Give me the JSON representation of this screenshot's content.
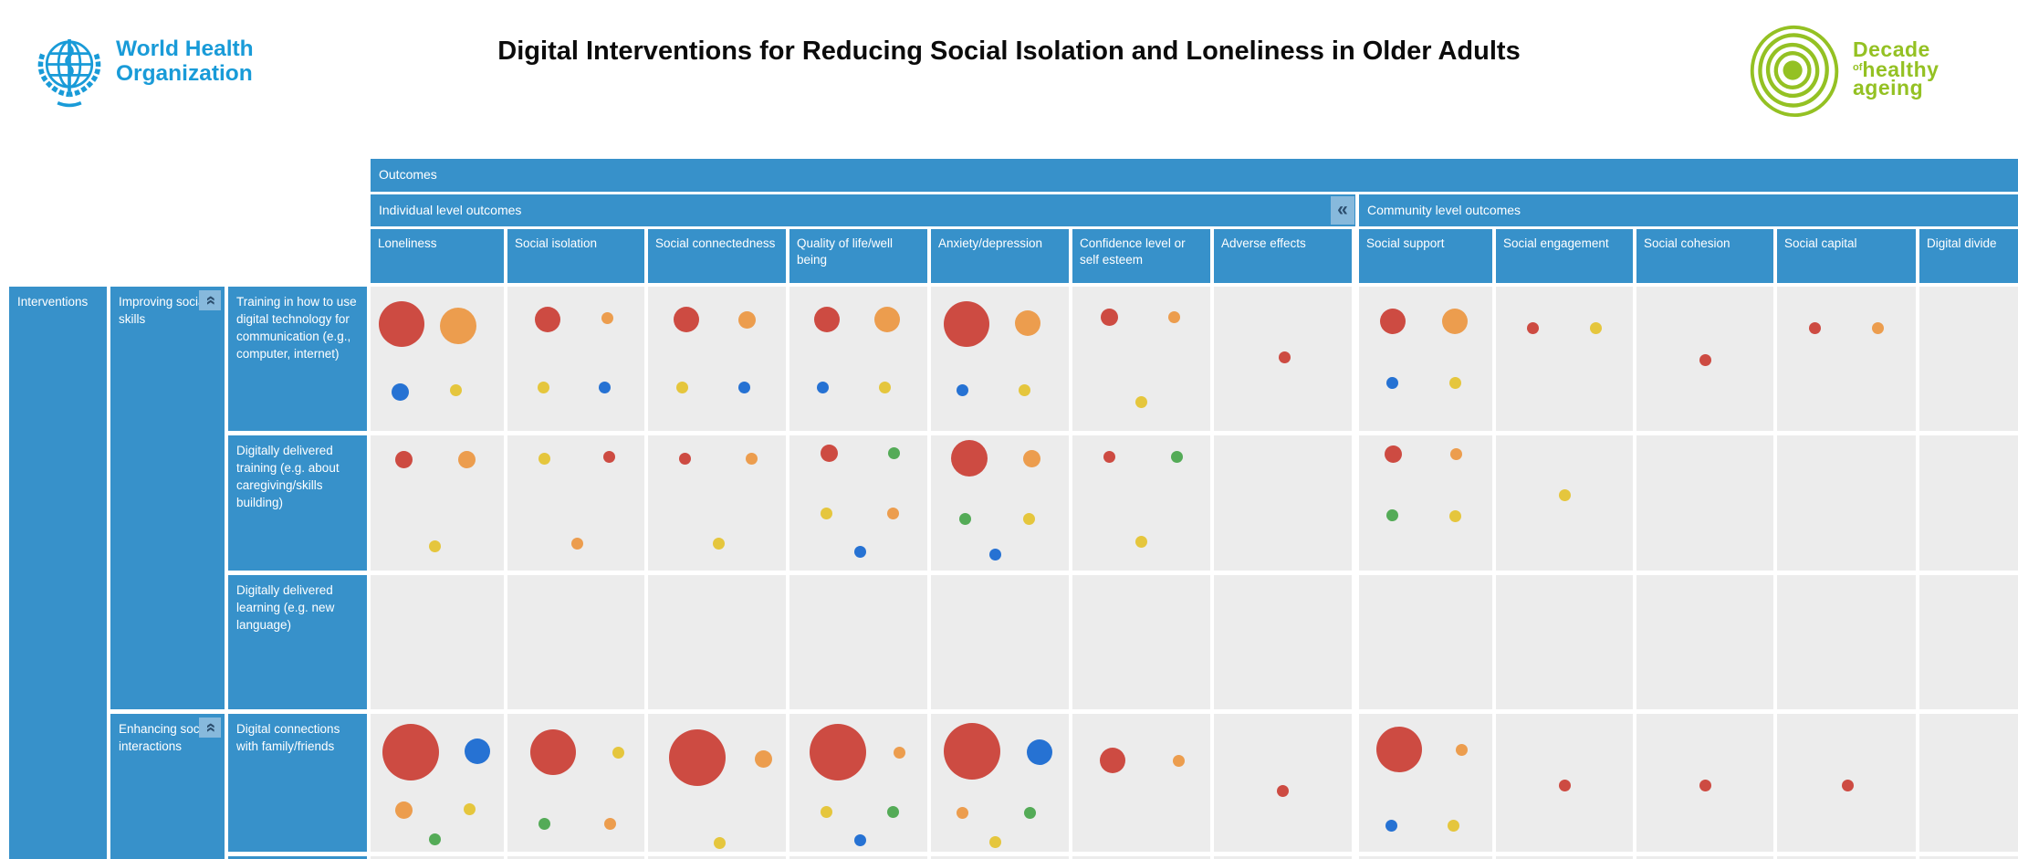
{
  "header": {
    "who": {
      "line1": "World Health",
      "line2": "Organization"
    },
    "title": "Digital Interventions for Reducing Social Isolation and Loneliness in Older Adults",
    "decade": {
      "word1": "Decade",
      "of": "of",
      "word2": "healthy",
      "word3": "ageing"
    }
  },
  "colors": {
    "header_blue": "#3791ca",
    "cell_gray": "#ececec",
    "collapse_bg": "#87b9dc",
    "collapse_fg": "#2b4d6d",
    "who_blue": "#199bd8",
    "decade_green": "#94c123",
    "red": "#cd4b42",
    "orange": "#ec9d4e",
    "yellow": "#e5c63d",
    "blue": "#2672d3",
    "green": "#54ab57"
  },
  "matrix": {
    "outcomes_label": "Outcomes",
    "bands": [
      {
        "label": "Individual level outcomes"
      },
      {
        "label": "Community level outcomes"
      }
    ],
    "collapse_icon": "«",
    "columns": [
      "Loneliness",
      "Social isolation",
      "Social connectedness",
      "Quality of life/well being",
      "Anxiety/depression",
      "Confidence level or self esteem",
      "Adverse effects",
      "Social support",
      "Social engagement",
      "Social cohesion",
      "Social capital",
      "Digital divide"
    ],
    "row_axis_label": "Interventions",
    "groups": [
      {
        "label": "Improving social skills"
      },
      {
        "label": "Enhancing social interactions"
      }
    ],
    "rows": [
      {
        "group": 0,
        "label": "Training in how to use digital technology for communication (e.g., computer, internet)",
        "cells": [
          [
            [
              "r",
              "xl",
              23,
              26
            ],
            [
              "o",
              "l",
              66,
              27
            ],
            [
              "b",
              "ms",
              22,
              73
            ],
            [
              "y",
              "s",
              64,
              72
            ]
          ],
          [
            [
              "r",
              "m",
              29,
              23
            ],
            [
              "o",
              "s",
              73,
              22
            ],
            [
              "y",
              "s",
              26,
              70
            ],
            [
              "b",
              "s",
              71,
              70
            ]
          ],
          [
            [
              "r",
              "m",
              28,
              23
            ],
            [
              "o",
              "ms",
              72,
              23
            ],
            [
              "y",
              "s",
              25,
              70
            ],
            [
              "b",
              "s",
              70,
              70
            ]
          ],
          [
            [
              "r",
              "m",
              27,
              23
            ],
            [
              "o",
              "m",
              71,
              23
            ],
            [
              "b",
              "s",
              24,
              70
            ],
            [
              "y",
              "s",
              69,
              70
            ]
          ],
          [
            [
              "r",
              "xl",
              26,
              26
            ],
            [
              "o",
              "m",
              70,
              25
            ],
            [
              "b",
              "s",
              23,
              72
            ],
            [
              "y",
              "s",
              68,
              72
            ]
          ],
          [
            [
              "r",
              "ms",
              27,
              21
            ],
            [
              "o",
              "s",
              74,
              21
            ],
            [
              "y",
              "s",
              50,
              80
            ]
          ],
          [
            [
              "r",
              "s",
              51,
              49
            ]
          ],
          [
            [
              "r",
              "m",
              25,
              24
            ],
            [
              "o",
              "m",
              72,
              24
            ],
            [
              "b",
              "s",
              25,
              67
            ],
            [
              "y",
              "s",
              72,
              67
            ]
          ],
          [
            [
              "r",
              "s",
              27,
              29
            ],
            [
              "y",
              "s",
              73,
              29
            ]
          ],
          [
            [
              "r",
              "s",
              50,
              51
            ]
          ],
          [
            [
              "r",
              "s",
              27,
              29
            ],
            [
              "o",
              "s",
              73,
              29
            ]
          ],
          []
        ]
      },
      {
        "group": 0,
        "label": "Digitally delivered training (e.g. about caregiving/skills building)",
        "cells": [
          [
            [
              "r",
              "ms",
              25,
              18
            ],
            [
              "o",
              "ms",
              72,
              18
            ],
            [
              "y",
              "s",
              48,
              82
            ]
          ],
          [
            [
              "y",
              "s",
              27,
              17
            ],
            [
              "r",
              "s",
              74,
              16
            ],
            [
              "o",
              "s",
              51,
              80
            ]
          ],
          [
            [
              "r",
              "s",
              27,
              17
            ],
            [
              "o",
              "s",
              75,
              17
            ],
            [
              "y",
              "s",
              51,
              80
            ]
          ],
          [
            [
              "r",
              "ms",
              29,
              13
            ],
            [
              "g",
              "s",
              76,
              13
            ],
            [
              "y",
              "s",
              27,
              58
            ],
            [
              "o",
              "s",
              75,
              58
            ],
            [
              "b",
              "s",
              51,
              86
            ]
          ],
          [
            [
              "r",
              "l",
              28,
              17
            ],
            [
              "o",
              "ms",
              73,
              17
            ],
            [
              "g",
              "s",
              25,
              62
            ],
            [
              "y",
              "s",
              71,
              62
            ],
            [
              "b",
              "s",
              47,
              88
            ]
          ],
          [
            [
              "r",
              "s",
              27,
              16
            ],
            [
              "g",
              "s",
              76,
              16
            ],
            [
              "y",
              "s",
              50,
              79
            ]
          ],
          [],
          [
            [
              "r",
              "ms",
              26,
              14
            ],
            [
              "o",
              "s",
              73,
              14
            ],
            [
              "g",
              "s",
              25,
              59
            ],
            [
              "y",
              "s",
              72,
              60
            ]
          ],
          [
            [
              "y",
              "s",
              50,
              44
            ]
          ],
          [],
          [],
          []
        ]
      },
      {
        "group": 0,
        "label": "Digitally delivered learning (e.g. new language)",
        "cells": [
          [],
          [],
          [],
          [],
          [],
          [],
          [],
          [],
          [],
          [],
          [],
          []
        ]
      },
      {
        "group": 1,
        "label": "Digital connections with family/friends",
        "cells": [
          [
            [
              "r",
              "xxl",
              30,
              28
            ],
            [
              "b",
              "m",
              80,
              27
            ],
            [
              "o",
              "ms",
              25,
              70
            ],
            [
              "y",
              "s",
              74,
              69
            ],
            [
              "g",
              "s",
              48,
              91
            ]
          ],
          [
            [
              "r",
              "xl",
              33,
              28
            ],
            [
              "y",
              "s",
              81,
              28
            ],
            [
              "g",
              "s",
              27,
              80
            ],
            [
              "o",
              "s",
              75,
              80
            ]
          ],
          [
            [
              "r",
              "xxl",
              36,
              32
            ],
            [
              "o",
              "ms",
              84,
              33
            ],
            [
              "y",
              "s",
              52,
              94
            ]
          ],
          [
            [
              "r",
              "xxl",
              35,
              28
            ],
            [
              "o",
              "s",
              80,
              28
            ],
            [
              "y",
              "s",
              27,
              71
            ],
            [
              "g",
              "s",
              75,
              71
            ],
            [
              "b",
              "s",
              51,
              92
            ]
          ],
          [
            [
              "r",
              "xxl",
              30,
              27
            ],
            [
              "b",
              "m",
              79,
              28
            ],
            [
              "o",
              "s",
              23,
              72
            ],
            [
              "g",
              "s",
              72,
              72
            ],
            [
              "y",
              "s",
              47,
              93
            ]
          ],
          [
            [
              "r",
              "m",
              29,
              34
            ],
            [
              "o",
              "s",
              77,
              34
            ]
          ],
          [
            [
              "r",
              "s",
              50,
              56
            ]
          ],
          [
            [
              "r",
              "xl",
              30,
              26
            ],
            [
              "o",
              "s",
              77,
              26
            ],
            [
              "b",
              "s",
              24,
              81
            ],
            [
              "y",
              "s",
              71,
              81
            ]
          ],
          [
            [
              "r",
              "s",
              50,
              52
            ]
          ],
          [
            [
              "r",
              "s",
              50,
              52
            ]
          ],
          [
            [
              "r",
              "s",
              51,
              52
            ]
          ],
          []
        ]
      }
    ]
  }
}
